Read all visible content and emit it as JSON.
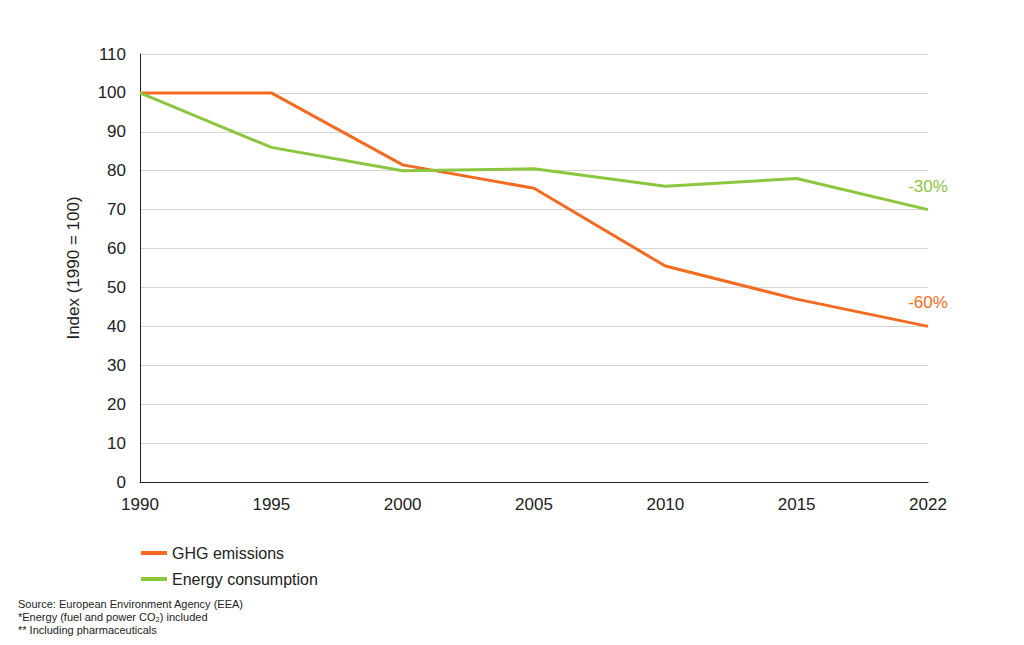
{
  "chart_data": {
    "type": "line",
    "y_label": "Index (1990 = 100)",
    "categories": [
      "1990",
      "1995",
      "2000",
      "2005",
      "2010",
      "2015",
      "2022"
    ],
    "series": [
      {
        "name": "GHG emissions",
        "color": "#f26b21",
        "values": [
          100,
          100,
          81.5,
          75.5,
          55.5,
          47,
          40
        ]
      },
      {
        "name": "Energy consumption",
        "color": "#8cc63f",
        "values": [
          100,
          86,
          80,
          80.5,
          76,
          78,
          70
        ]
      }
    ],
    "annotations": [
      {
        "text": "-30%",
        "series": "Energy consumption"
      },
      {
        "text": "-60%",
        "series": "GHG emissions"
      }
    ],
    "ylim": [
      0,
      110
    ],
    "yticks": [
      0,
      10,
      20,
      30,
      40,
      50,
      60,
      70,
      80,
      90,
      100,
      110
    ],
    "grid": true,
    "legend": "bottom",
    "notes": [
      "Source: European Environment Agency (EEA)",
      "*Energy (fuel and power CO₂) included",
      "** Including pharmaceuticals"
    ]
  }
}
